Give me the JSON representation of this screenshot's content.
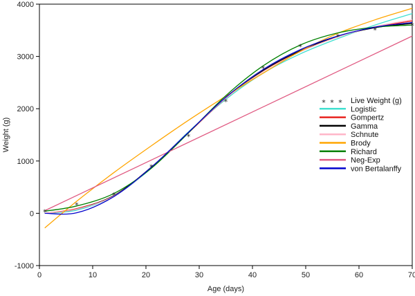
{
  "chart_data": {
    "type": "line",
    "title": "",
    "xlabel": "Age (days)",
    "ylabel": "Weight (g)",
    "xlim": [
      0,
      70
    ],
    "ylim": [
      -1000,
      4000
    ],
    "xticks": [
      0,
      10,
      20,
      30,
      40,
      50,
      60,
      70
    ],
    "yticks": [
      -1000,
      0,
      1000,
      2000,
      3000,
      4000
    ],
    "grid": false,
    "legend_position": "right",
    "observed": {
      "name": "Live Weight (g)",
      "marker": "*",
      "x": [
        1,
        7,
        14,
        21,
        28,
        35,
        42,
        49,
        56,
        63,
        70
      ],
      "y": [
        40,
        170,
        360,
        900,
        1480,
        2150,
        2780,
        3200,
        3390,
        3520,
        3600
      ]
    },
    "series": [
      {
        "name": "Logistic",
        "color": "#40e0d0",
        "x": [
          1,
          7,
          14,
          21,
          28,
          35,
          42,
          49,
          56,
          63,
          70
        ],
        "y": [
          0,
          60,
          330,
          860,
          1560,
          2180,
          2680,
          3050,
          3340,
          3600,
          3820
        ]
      },
      {
        "name": "Gompertz",
        "color": "#e8231f",
        "x": [
          1,
          7,
          14,
          21,
          28,
          35,
          42,
          49,
          56,
          63,
          70
        ],
        "y": [
          0,
          90,
          340,
          880,
          1540,
          2200,
          2720,
          3100,
          3380,
          3560,
          3680
        ]
      },
      {
        "name": "Gamma",
        "color": "#000000",
        "x": [
          1,
          7,
          14,
          21,
          28,
          35,
          42,
          49,
          56,
          63,
          70
        ],
        "y": [
          0,
          80,
          340,
          880,
          1550,
          2200,
          2730,
          3110,
          3380,
          3550,
          3630
        ]
      },
      {
        "name": "Schnute",
        "color": "#ffb6c8",
        "x": [
          1,
          7,
          14,
          21,
          28,
          35,
          42,
          49,
          56,
          63,
          70
        ],
        "y": [
          0,
          80,
          330,
          870,
          1550,
          2200,
          2710,
          3090,
          3370,
          3570,
          3700
        ]
      },
      {
        "name": "Brody",
        "color": "#ffa500",
        "x": [
          1,
          7,
          14,
          21,
          28,
          35,
          42,
          49,
          56,
          63,
          70
        ],
        "y": [
          -280,
          230,
          780,
          1290,
          1780,
          2240,
          2680,
          3100,
          3440,
          3700,
          3920
        ]
      },
      {
        "name": "Richard",
        "color": "#008000",
        "x": [
          1,
          7,
          14,
          21,
          28,
          35,
          42,
          49,
          56,
          63,
          70
        ],
        "y": [
          40,
          140,
          380,
          860,
          1540,
          2250,
          2820,
          3220,
          3450,
          3560,
          3600
        ]
      },
      {
        "name": "Neg-Exp",
        "color": "#e05a82",
        "x": [
          1,
          70
        ],
        "y": [
          50,
          3390
        ]
      },
      {
        "name": "von Bertalanffy",
        "color": "#0000cc",
        "x": [
          1,
          7,
          14,
          21,
          28,
          35,
          42,
          49,
          56,
          63,
          70
        ],
        "y": [
          0,
          10,
          320,
          880,
          1550,
          2220,
          2750,
          3130,
          3390,
          3560,
          3650
        ]
      }
    ]
  }
}
